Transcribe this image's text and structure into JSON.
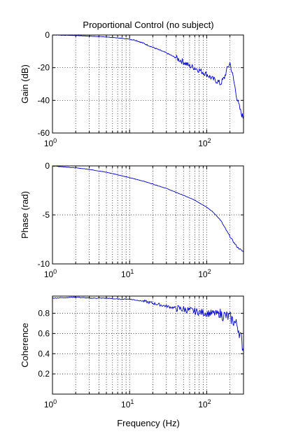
{
  "figure_title": "Proportional Control (no subject)",
  "shared_xlabel": "Frequency (Hz)",
  "series_color": "#0000c8",
  "chart_data": [
    {
      "type": "line",
      "title": "Proportional Control (no subject)",
      "xlabel": "",
      "ylabel": "Gain (dB)",
      "xscale": "log",
      "xlim": [
        1,
        300
      ],
      "ylim": [
        -60,
        0
      ],
      "yticks": [
        0,
        -20,
        -40,
        -60
      ],
      "ytick_labels": [
        "0",
        "-20",
        "-40",
        "-60"
      ],
      "xtick_labels": [
        {
          "base": "10",
          "exp": "0"
        },
        {
          "base": "10",
          "exp": "2"
        }
      ],
      "grid": true,
      "series": [
        {
          "x": [
            1,
            2,
            3,
            5,
            7,
            10,
            12,
            15,
            20,
            30,
            40,
            50,
            60,
            70,
            80,
            100,
            120,
            140,
            150,
            170,
            180,
            200,
            220,
            250,
            280,
            300
          ],
          "values": [
            0,
            -0.3,
            -0.7,
            -1.2,
            -1.8,
            -2.5,
            -3.2,
            -5,
            -7.5,
            -11,
            -14,
            -16.5,
            -19,
            -20,
            -21.5,
            -24,
            -27,
            -28.5,
            -30,
            -26,
            -22,
            -17,
            -26,
            -40,
            -48,
            -51
          ]
        }
      ]
    },
    {
      "type": "line",
      "title": "",
      "xlabel": "",
      "ylabel": "Phase (rad)",
      "xscale": "log",
      "xlim": [
        1,
        300
      ],
      "ylim": [
        -10,
        0
      ],
      "yticks": [
        0,
        -5,
        -10
      ],
      "ytick_labels": [
        "0",
        "-5",
        "-10"
      ],
      "xtick_labels": [
        {
          "base": "10",
          "exp": "0"
        },
        {
          "base": "10",
          "exp": "1"
        },
        {
          "base": "10",
          "exp": "2"
        }
      ],
      "grid": true,
      "series": [
        {
          "x": [
            1,
            2,
            3,
            5,
            7,
            10,
            15,
            20,
            30,
            40,
            50,
            70,
            100,
            120,
            150,
            180,
            200,
            220,
            250,
            280,
            300
          ],
          "values": [
            0,
            -0.2,
            -0.35,
            -0.65,
            -0.9,
            -1.2,
            -1.55,
            -1.85,
            -2.3,
            -2.7,
            -3.0,
            -3.5,
            -4.2,
            -4.7,
            -5.5,
            -6.6,
            -7.2,
            -7.7,
            -8.3,
            -8.6,
            -8.8
          ]
        }
      ]
    },
    {
      "type": "line",
      "title": "",
      "xlabel": "Frequency (Hz)",
      "ylabel": "Coherence",
      "xscale": "log",
      "xlim": [
        1,
        300
      ],
      "ylim": [
        0,
        0.97
      ],
      "yticks": [
        0.2,
        0.4,
        0.6,
        0.8
      ],
      "ytick_labels": [
        "0.2",
        "0.4",
        "0.6",
        "0.8"
      ],
      "xtick_labels": [
        {
          "base": "10",
          "exp": "0"
        },
        {
          "base": "10",
          "exp": "1"
        },
        {
          "base": "10",
          "exp": "2"
        }
      ],
      "grid": true,
      "series": [
        {
          "x": [
            1,
            2,
            3,
            5,
            7,
            10,
            15,
            20,
            30,
            40,
            50,
            70,
            100,
            120,
            150,
            200,
            250,
            280,
            300
          ],
          "values": [
            0.95,
            0.96,
            0.95,
            0.95,
            0.94,
            0.94,
            0.92,
            0.9,
            0.87,
            0.85,
            0.84,
            0.82,
            0.8,
            0.8,
            0.79,
            0.76,
            0.68,
            0.55,
            0.42
          ]
        }
      ]
    }
  ]
}
